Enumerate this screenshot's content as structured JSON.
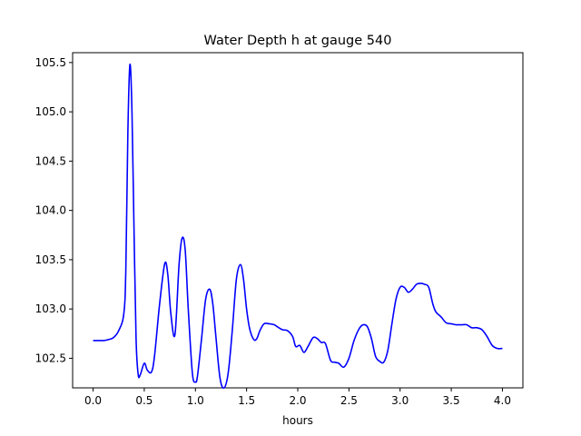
{
  "chart_data": {
    "type": "line",
    "title": "Water Depth h at gauge 540",
    "xlabel": "hours",
    "ylabel": "",
    "xlim": [
      -0.2,
      4.2
    ],
    "ylim": [
      102.2,
      105.6
    ],
    "grid": false,
    "xticks": [
      0.0,
      0.5,
      1.0,
      1.5,
      2.0,
      2.5,
      3.0,
      3.5,
      4.0
    ],
    "xtick_labels": [
      "0.0",
      "0.5",
      "1.0",
      "1.5",
      "2.0",
      "2.5",
      "3.0",
      "3.5",
      "4.0"
    ],
    "yticks": [
      102.5,
      103.0,
      103.5,
      104.0,
      104.5,
      105.0,
      105.5
    ],
    "ytick_labels": [
      "102.5",
      "103.0",
      "103.5",
      "104.0",
      "104.5",
      "105.0",
      "105.5"
    ],
    "series": [
      {
        "color": "#0000ff",
        "x": [
          0.0,
          0.1,
          0.15,
          0.2,
          0.25,
          0.3,
          0.32,
          0.34,
          0.36,
          0.38,
          0.4,
          0.42,
          0.44,
          0.46,
          0.5,
          0.53,
          0.57,
          0.6,
          0.65,
          0.7,
          0.73,
          0.76,
          0.8,
          0.84,
          0.87,
          0.9,
          0.93,
          0.97,
          1.0,
          1.02,
          1.06,
          1.1,
          1.14,
          1.17,
          1.2,
          1.24,
          1.28,
          1.32,
          1.36,
          1.4,
          1.44,
          1.47,
          1.5,
          1.53,
          1.57,
          1.6,
          1.63,
          1.67,
          1.72,
          1.77,
          1.8,
          1.85,
          1.9,
          1.95,
          1.98,
          2.02,
          2.06,
          2.1,
          2.15,
          2.19,
          2.23,
          2.27,
          2.32,
          2.36,
          2.4,
          2.45,
          2.5,
          2.55,
          2.6,
          2.64,
          2.68,
          2.72,
          2.76,
          2.8,
          2.84,
          2.88,
          2.92,
          2.96,
          3.0,
          3.04,
          3.08,
          3.12,
          3.16,
          3.2,
          3.24,
          3.28,
          3.32,
          3.35,
          3.4,
          3.45,
          3.5,
          3.55,
          3.6,
          3.65,
          3.7,
          3.75,
          3.8,
          3.85,
          3.9,
          3.95,
          4.0
        ],
        "y": [
          102.68,
          102.68,
          102.69,
          102.71,
          102.78,
          102.95,
          103.4,
          104.8,
          105.48,
          105.0,
          103.8,
          102.7,
          102.34,
          102.33,
          102.45,
          102.38,
          102.36,
          102.52,
          103.05,
          103.46,
          103.35,
          102.95,
          102.74,
          103.45,
          103.72,
          103.6,
          103.0,
          102.35,
          102.26,
          102.32,
          102.7,
          103.1,
          103.2,
          103.05,
          102.72,
          102.3,
          102.2,
          102.35,
          102.78,
          103.3,
          103.45,
          103.3,
          103.0,
          102.8,
          102.69,
          102.7,
          102.78,
          102.85,
          102.85,
          102.84,
          102.82,
          102.79,
          102.78,
          102.72,
          102.62,
          102.63,
          102.56,
          102.62,
          102.71,
          102.7,
          102.66,
          102.65,
          102.48,
          102.46,
          102.45,
          102.41,
          102.5,
          102.68,
          102.8,
          102.84,
          102.82,
          102.7,
          102.52,
          102.47,
          102.46,
          102.58,
          102.85,
          103.1,
          103.22,
          103.22,
          103.17,
          103.2,
          103.25,
          103.26,
          103.25,
          103.22,
          103.05,
          102.97,
          102.92,
          102.86,
          102.85,
          102.84,
          102.84,
          102.84,
          102.81,
          102.81,
          102.79,
          102.72,
          102.63,
          102.6,
          102.6
        ]
      }
    ]
  }
}
